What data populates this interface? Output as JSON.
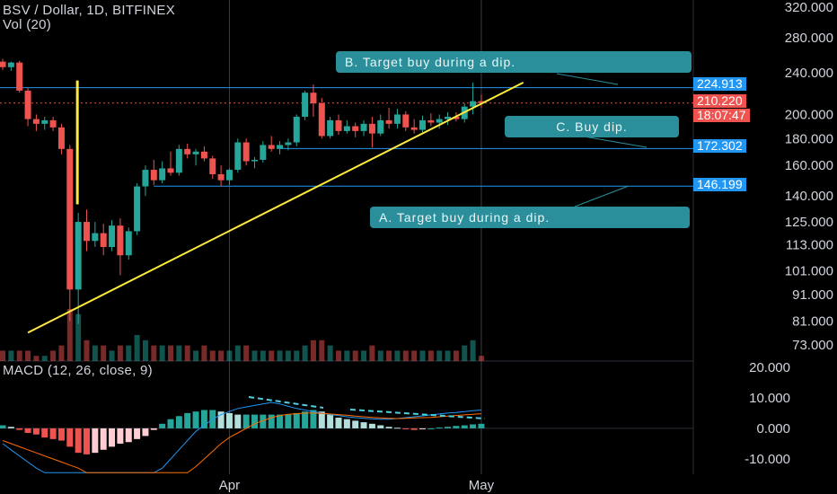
{
  "header": {
    "title": "BSV / Dollar, 1D, BITFINEX",
    "vol": "Vol (20)",
    "macd": "MACD (12, 26, close, 9)"
  },
  "price_tags": {
    "level_b": "224.913",
    "last": "210.220",
    "countdown": "18:07:47",
    "level_c": "172.302",
    "level_a": "146.199"
  },
  "annotations": {
    "a": "A. Target buy during a dip.",
    "b": "B. Target buy during a dip.",
    "c": "C. Buy dip."
  },
  "colors": {
    "up": "#26a69a",
    "down": "#ef5350",
    "trendline": "#ffeb3b",
    "callout": "#2a8f9a",
    "macd_line": "#2196f3",
    "signal_line": "#ff6d00",
    "tag_blue": "#2196f3",
    "tag_red": "#ef5350"
  },
  "chart_data": [
    {
      "type": "candlestick",
      "title": "BSV / Dollar, 1D, BITFINEX",
      "scale": "log",
      "y_ticks": [
        73,
        81,
        91,
        101,
        113,
        125,
        140,
        160,
        180,
        200,
        240,
        280,
        320
      ],
      "y_tick_labels": [
        "73.000",
        "81.000",
        "91.000",
        "101.000",
        "113.000",
        "125.000",
        "140.000",
        "160.000",
        "180.000",
        "200.000",
        "240.000",
        "280.000",
        "320.000"
      ],
      "x_tick_labels": [
        {
          "label": "Apr",
          "day": 27
        },
        {
          "label": "May",
          "day": 57
        }
      ],
      "ylim": [
        68,
        330
      ],
      "ohlc": [
        [
          0,
          252,
          255,
          243,
          246
        ],
        [
          1,
          246,
          252,
          242,
          251
        ],
        [
          2,
          251,
          253,
          220,
          222
        ],
        [
          3,
          222,
          225,
          190,
          196
        ],
        [
          4,
          196,
          200,
          186,
          192
        ],
        [
          5,
          192,
          198,
          187,
          195
        ],
        [
          6,
          195,
          198,
          186,
          189
        ],
        [
          7,
          189,
          192,
          168,
          172
        ],
        [
          8,
          172,
          175,
          81,
          93
        ],
        [
          9,
          93,
          130,
          80,
          125
        ],
        [
          10,
          125,
          132,
          110,
          115
        ],
        [
          11,
          115,
          125,
          112,
          119
        ],
        [
          12,
          119,
          124,
          108,
          112
        ],
        [
          13,
          112,
          126,
          110,
          123
        ],
        [
          14,
          123,
          127,
          99,
          108
        ],
        [
          15,
          108,
          122,
          106,
          120
        ],
        [
          16,
          120,
          148,
          118,
          146
        ],
        [
          17,
          146,
          160,
          140,
          157
        ],
        [
          18,
          157,
          164,
          147,
          150
        ],
        [
          19,
          150,
          163,
          148,
          158
        ],
        [
          20,
          158,
          170,
          153,
          155
        ],
        [
          21,
          155,
          175,
          153,
          172
        ],
        [
          22,
          172,
          176,
          165,
          168
        ],
        [
          23,
          168,
          172,
          160,
          170
        ],
        [
          24,
          170,
          174,
          163,
          165
        ],
        [
          25,
          165,
          167,
          151,
          154
        ],
        [
          26,
          154,
          160,
          146,
          150
        ],
        [
          27,
          150,
          158,
          147,
          157
        ],
        [
          28,
          157,
          180,
          155,
          177
        ],
        [
          29,
          177,
          180,
          160,
          163
        ],
        [
          30,
          163,
          166,
          158,
          164
        ],
        [
          31,
          164,
          178,
          162,
          175
        ],
        [
          32,
          175,
          182,
          170,
          172
        ],
        [
          33,
          172,
          178,
          168,
          175
        ],
        [
          34,
          175,
          180,
          171,
          177
        ],
        [
          35,
          177,
          200,
          174,
          198
        ],
        [
          36,
          198,
          222,
          195,
          220
        ],
        [
          37,
          220,
          228,
          198,
          210
        ],
        [
          38,
          210,
          215,
          180,
          182
        ],
        [
          39,
          182,
          198,
          180,
          195
        ],
        [
          40,
          195,
          200,
          183,
          186
        ],
        [
          41,
          186,
          195,
          184,
          190
        ],
        [
          42,
          190,
          193,
          181,
          186
        ],
        [
          43,
          186,
          195,
          182,
          192
        ],
        [
          44,
          192,
          198,
          173,
          184
        ],
        [
          45,
          184,
          200,
          182,
          195
        ],
        [
          46,
          195,
          206,
          188,
          192
        ],
        [
          47,
          192,
          205,
          188,
          200
        ],
        [
          48,
          200,
          203,
          186,
          189
        ],
        [
          49,
          189,
          196,
          184,
          187
        ],
        [
          50,
          187,
          199,
          185,
          195
        ],
        [
          51,
          195,
          201,
          190,
          193
        ],
        [
          52,
          193,
          200,
          188,
          196
        ],
        [
          53,
          196,
          202,
          191,
          198
        ],
        [
          54,
          198,
          202,
          194,
          196
        ],
        [
          55,
          196,
          210,
          193,
          207
        ],
        [
          56,
          207,
          230,
          200,
          212
        ],
        [
          57,
          212,
          218,
          206,
          210.22
        ]
      ],
      "volume": [
        2,
        2,
        2,
        2,
        1,
        1,
        2,
        3,
        10,
        9,
        4,
        3,
        3,
        2,
        3,
        3,
        5,
        4,
        3,
        3,
        3,
        3,
        3,
        2,
        3,
        2,
        2,
        2,
        3,
        3,
        2,
        2,
        2,
        2,
        2,
        2,
        3,
        4,
        4,
        3,
        2,
        2,
        2,
        2,
        3,
        2,
        2,
        2,
        2,
        2,
        2,
        2,
        2,
        2,
        2,
        3,
        4,
        1
      ],
      "horizontal_levels": [
        224.913,
        172.302,
        146.199
      ],
      "current_price": 210.22,
      "trendline": [
        [
          3,
          77
        ],
        [
          62,
          230
        ]
      ],
      "marker_range": [
        9,
        135,
        232
      ]
    },
    {
      "type": "bar",
      "title": "MACD (12, 26, close, 9)",
      "y_ticks": [
        -10,
        0,
        10,
        20
      ],
      "y_tick_labels": [
        "-10.000",
        "0.000",
        "10.000",
        "20.000"
      ],
      "ylim": [
        -15,
        22
      ],
      "histogram": [
        1,
        0.5,
        -0.5,
        -1.5,
        -2,
        -3,
        -3.5,
        -4,
        -6,
        -8,
        -8.5,
        -8,
        -7,
        -6,
        -5,
        -4.5,
        -3.5,
        -2.5,
        -0.5,
        1.5,
        3,
        4,
        5,
        5.5,
        6,
        6,
        5.5,
        5,
        4.5,
        4.5,
        4.5,
        4.5,
        4.5,
        4.5,
        4.5,
        5,
        5.5,
        6,
        5.5,
        4.5,
        3.5,
        3,
        2.5,
        2,
        1.5,
        1,
        0.5,
        0.2,
        -0.3,
        -0.5,
        -0.3,
        0,
        0.3,
        0.5,
        0.8,
        1,
        1.3,
        1.5
      ],
      "macd": [
        -5,
        -7,
        -9,
        -11,
        -13,
        -15,
        -18,
        -20,
        -22,
        -24,
        -25.5,
        -26,
        -26.5,
        -26,
        -25,
        -24,
        -22,
        -19,
        -16,
        -13,
        -10,
        -7,
        -4,
        -1,
        1,
        3,
        4.5,
        5.5,
        6.5,
        7,
        7.5,
        8,
        8.5,
        8,
        7.2,
        6.5,
        6,
        5.5,
        5,
        4.5,
        4.2,
        3.8,
        3.5,
        3.3,
        3.1,
        3,
        3,
        3.2,
        3.5,
        3.8,
        4.1,
        4.4,
        4.7,
        5,
        5.2,
        5.5,
        5.8,
        6
      ],
      "signal": [
        -4,
        -5,
        -6,
        -7,
        -8,
        -9,
        -10,
        -11,
        -12,
        -13,
        -14.5,
        -16,
        -17.5,
        -19,
        -20.5,
        -21.5,
        -22.5,
        -23,
        -22,
        -20.5,
        -19,
        -17,
        -15,
        -12.5,
        -10,
        -7.5,
        -5,
        -3,
        -1.5,
        0,
        1.5,
        2.5,
        3.5,
        4.2,
        4.6,
        4.8,
        5,
        5,
        4.9,
        4.7,
        4.5,
        4.3,
        4,
        3.8,
        3.6,
        3.4,
        3.3,
        3.2,
        3.3,
        3.4,
        3.5,
        3.6,
        3.8,
        4,
        4.2,
        4.4,
        4.6,
        4.8
      ]
    }
  ]
}
